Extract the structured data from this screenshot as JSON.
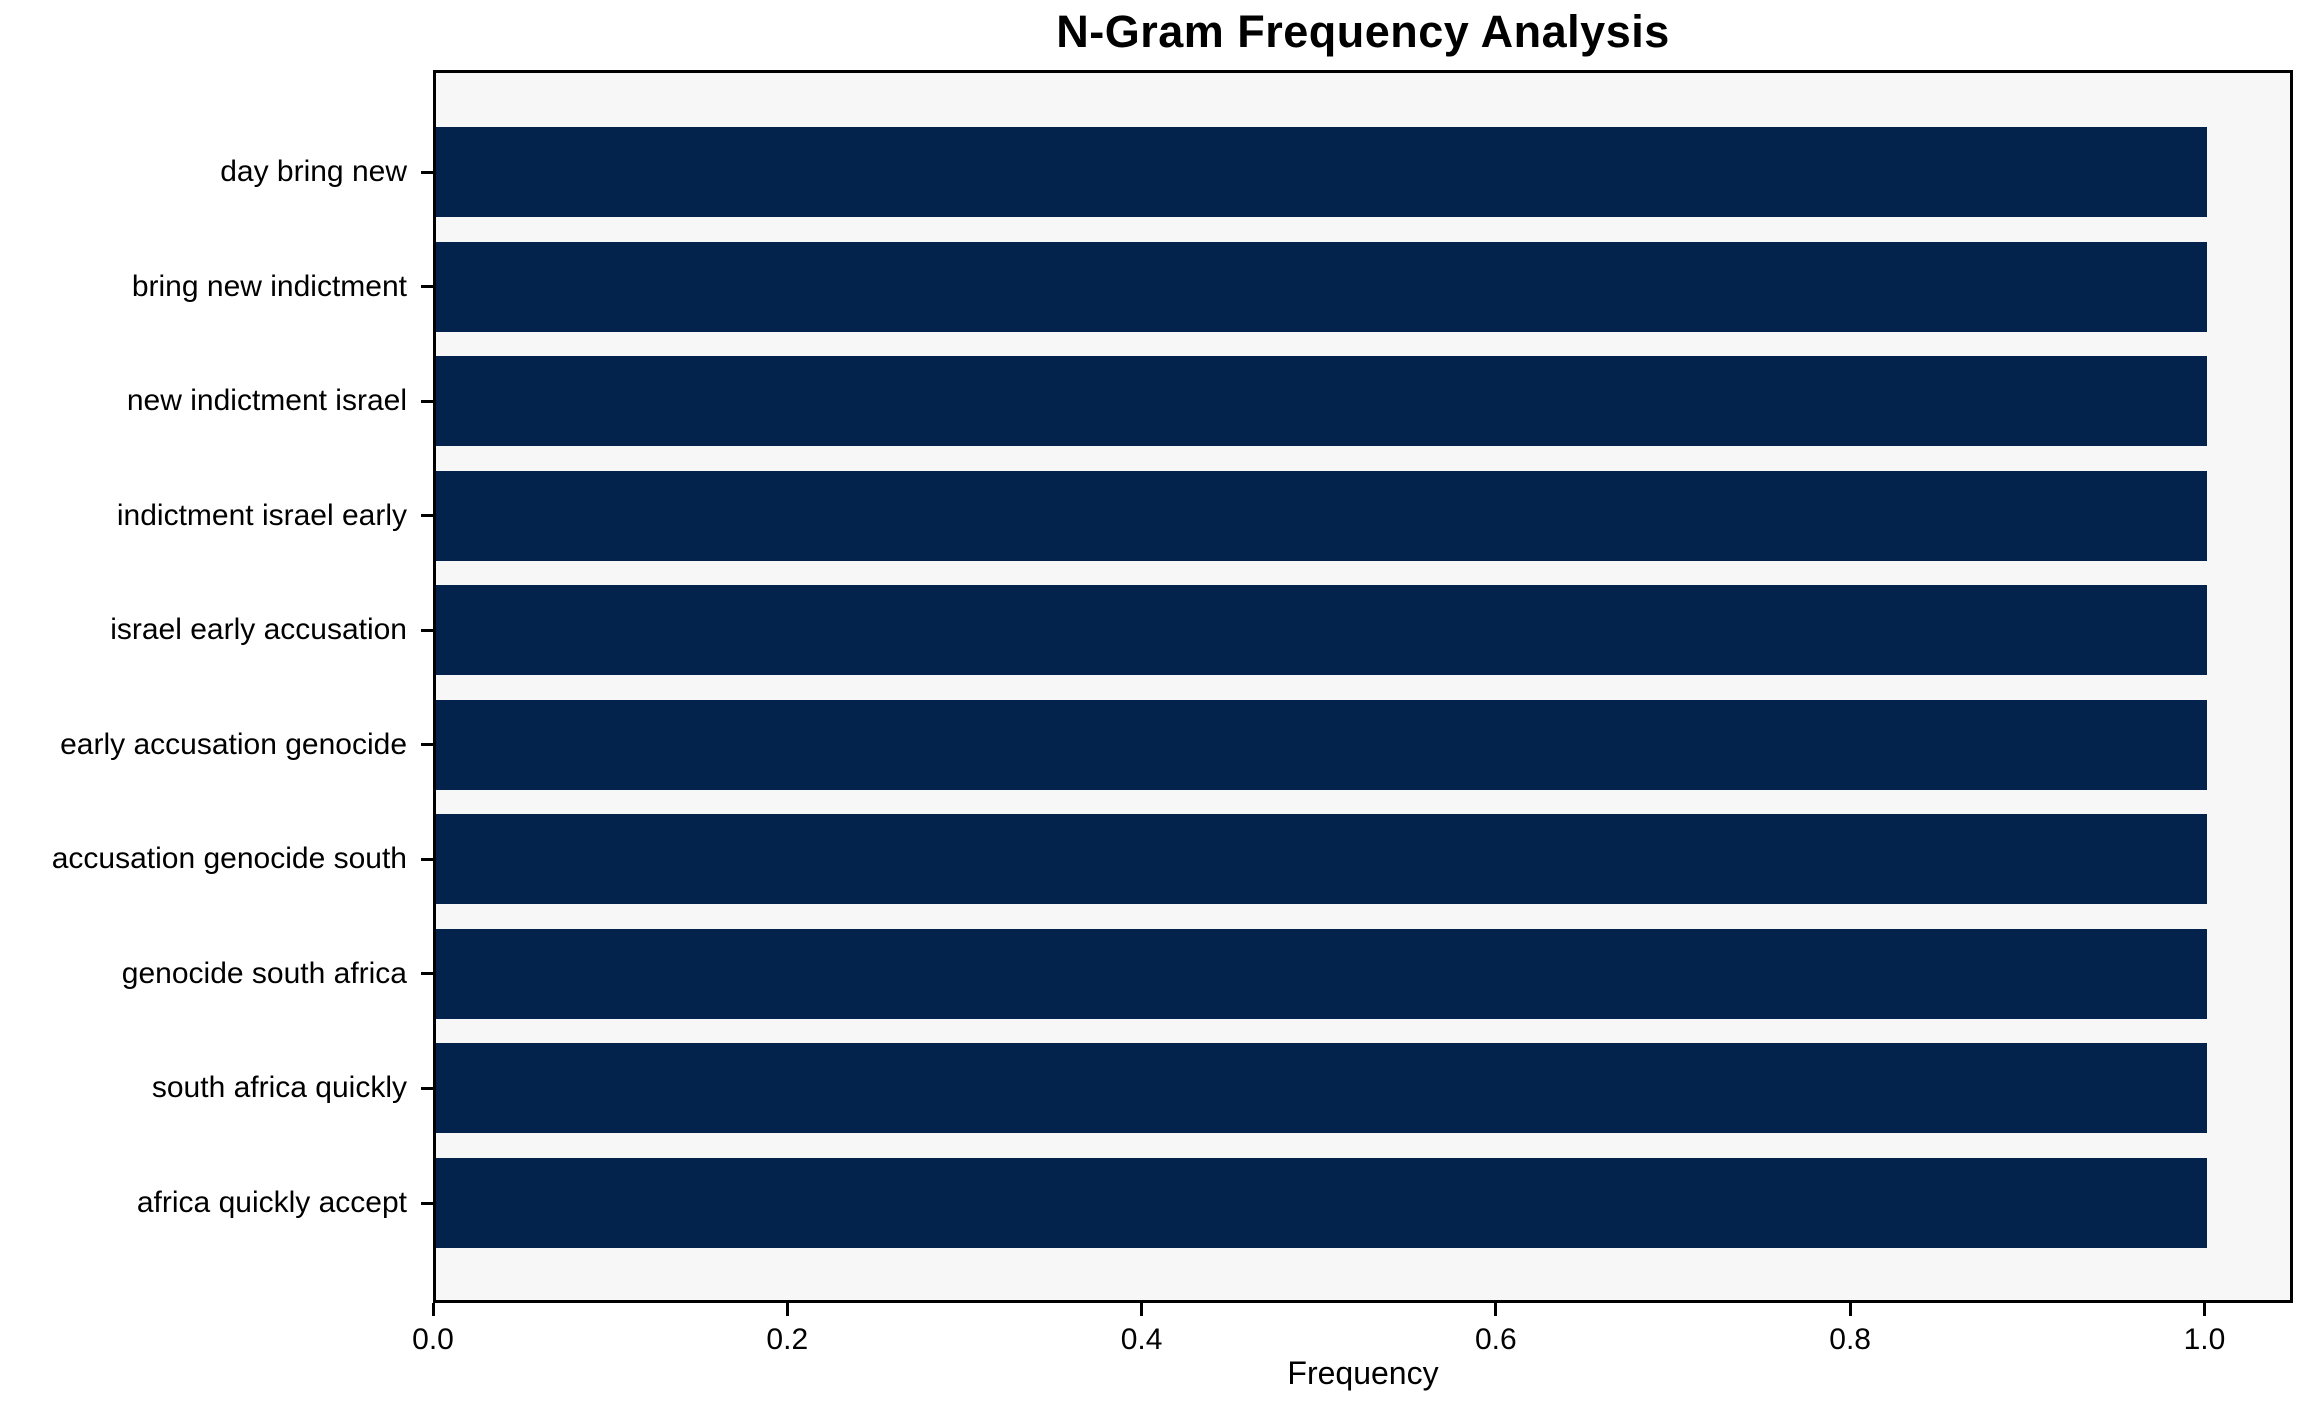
{
  "chart_data": {
    "type": "bar",
    "orientation": "horizontal",
    "title": "N-Gram Frequency Analysis",
    "xlabel": "Frequency",
    "ylabel": "",
    "categories": [
      "day bring new",
      "bring new indictment",
      "new indictment israel",
      "indictment israel early",
      "israel early accusation",
      "early accusation genocide",
      "accusation genocide south",
      "genocide south africa",
      "south africa quickly",
      "africa quickly accept"
    ],
    "values": [
      1.0,
      1.0,
      1.0,
      1.0,
      1.0,
      1.0,
      1.0,
      1.0,
      1.0,
      1.0
    ],
    "x_ticks": [
      {
        "value": 0.0,
        "label": "0.0"
      },
      {
        "value": 0.2,
        "label": "0.2"
      },
      {
        "value": 0.4,
        "label": "0.4"
      },
      {
        "value": 0.6,
        "label": "0.6"
      },
      {
        "value": 0.8,
        "label": "0.8"
      },
      {
        "value": 1.0,
        "label": "1.0"
      }
    ],
    "xlim": [
      0,
      1.05
    ],
    "grid": false,
    "legend_position": "none",
    "colors": {
      "bar": "#03234d",
      "plot_background": "#f7f7f8",
      "figure_background": "#ffffff",
      "axis": "#000000",
      "text": "#000000"
    }
  }
}
